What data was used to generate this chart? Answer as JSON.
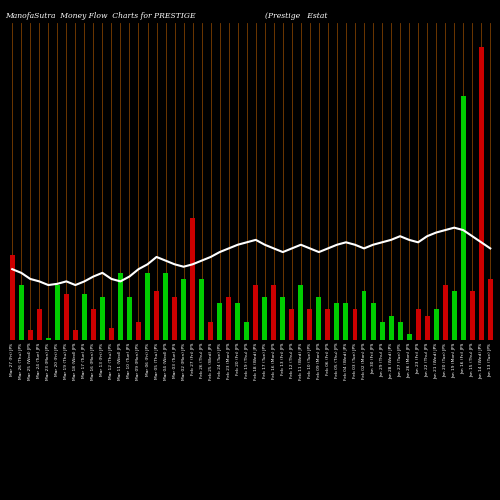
{
  "title_left": "ManofaSutra  Money Flow  Charts for PRESTIGE",
  "title_right": "(Prestige   Estat",
  "background_color": "#000000",
  "bar_color_positive": "#00cc00",
  "bar_color_negative": "#cc0000",
  "line_color": "#ffffff",
  "vline_color": "#8B4500",
  "categories": [
    "Mar 27 (Fri) JPS",
    "Mar 26 (Thu) JPS",
    "Mar 25 (Wed) JPS",
    "Mar 24 (Tue) JPS",
    "Mar 23 (Mon) JPS",
    "Mar 20 (Fri) JPS",
    "Mar 19 (Thu) JPS",
    "Mar 18 (Wed) JPS",
    "Mar 17 (Tue) JPS",
    "Mar 16 (Mon) JPS",
    "Mar 13 (Fri) JPS",
    "Mar 12 (Thu) JPS",
    "Mar 11 (Wed) JPS",
    "Mar 10 (Tue) JPS",
    "Mar 09 (Mon) JPS",
    "Mar 06 (Fri) JPS",
    "Mar 05 (Thu) JPS",
    "Mar 04 (Wed) JPS",
    "Mar 03 (Tue) JPS",
    "Mar 02 (Mon) JPS",
    "Feb 27 (Fri) JPS",
    "Feb 26 (Thu) JPS",
    "Feb 25 (Wed) JPS",
    "Feb 24 (Tue) JPS",
    "Feb 23 (Mon) JPS",
    "Feb 20 (Fri) JPS",
    "Feb 19 (Thu) JPS",
    "Feb 18 (Wed) JPS",
    "Feb 17 (Tue) JPS",
    "Feb 16 (Mon) JPS",
    "Feb 13 (Fri) JPS",
    "Feb 12 (Thu) JPS",
    "Feb 11 (Wed) JPS",
    "Feb 10 (Tue) JPS",
    "Feb 09 (Mon) JPS",
    "Feb 06 (Fri) JPS",
    "Feb 05 (Thu) JPS",
    "Feb 04 (Wed) JPS",
    "Feb 03 (Tue) JPS",
    "Feb 02 (Mon) JPS",
    "Jan 30 (Fri) JPS",
    "Jan 29 (Thu) JPS",
    "Jan 28 (Wed) JPS",
    "Jan 27 (Tue) JPS",
    "Jan 26 (Mon) JPS",
    "Jan 23 (Fri) JPS",
    "Jan 22 (Thu) JPS",
    "Jan 21 (Wed) JPS",
    "Jan 20 (Tue) JPS",
    "Jan 19 (Mon) JPS",
    "Jan 16 (Fri) JPS",
    "Jan 15 (Thu) JPS",
    "Jan 14 (Wed) JPS",
    "Jan 13 (Tue) JPS"
  ],
  "bar_heights": [
    7.0,
    4.5,
    0.8,
    2.5,
    0.2,
    4.5,
    3.8,
    0.8,
    3.8,
    2.5,
    3.5,
    1.0,
    5.5,
    3.5,
    1.5,
    5.5,
    4.0,
    5.5,
    3.5,
    5.0,
    10.0,
    5.0,
    1.5,
    3.0,
    3.5,
    3.0,
    1.5,
    4.5,
    3.5,
    4.5,
    3.5,
    2.5,
    4.5,
    2.5,
    3.5,
    2.5,
    3.0,
    3.0,
    2.5,
    4.0,
    3.0,
    1.5,
    2.0,
    1.5,
    0.5,
    2.5,
    2.0,
    2.5,
    4.5,
    4.0,
    20.0,
    4.0,
    24.0,
    5.0
  ],
  "bar_colors": [
    "r",
    "g",
    "r",
    "r",
    "g",
    "g",
    "r",
    "r",
    "g",
    "r",
    "g",
    "r",
    "g",
    "g",
    "r",
    "g",
    "r",
    "g",
    "r",
    "g",
    "r",
    "g",
    "r",
    "g",
    "r",
    "g",
    "g",
    "r",
    "g",
    "r",
    "g",
    "r",
    "g",
    "r",
    "g",
    "r",
    "g",
    "g",
    "r",
    "g",
    "g",
    "g",
    "g",
    "g",
    "g",
    "r",
    "r",
    "g",
    "r",
    "g",
    "g",
    "r",
    "r",
    "r"
  ],
  "line_values": [
    5.8,
    5.5,
    5.0,
    4.8,
    4.5,
    4.6,
    4.8,
    4.5,
    4.8,
    5.2,
    5.5,
    5.0,
    4.8,
    5.2,
    5.8,
    6.2,
    6.8,
    6.5,
    6.2,
    6.0,
    6.2,
    6.5,
    6.8,
    7.2,
    7.5,
    7.8,
    8.0,
    8.2,
    7.8,
    7.5,
    7.2,
    7.5,
    7.8,
    7.5,
    7.2,
    7.5,
    7.8,
    8.0,
    7.8,
    7.5,
    7.8,
    8.0,
    8.2,
    8.5,
    8.2,
    8.0,
    8.5,
    8.8,
    9.0,
    9.2,
    9.0,
    8.5,
    8.0,
    7.5
  ]
}
